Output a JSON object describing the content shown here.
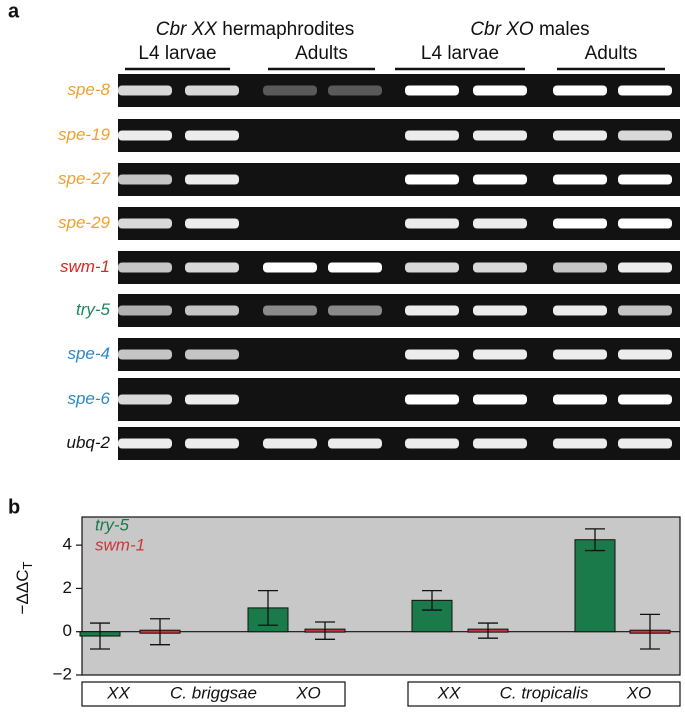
{
  "panel_a": {
    "label": "a",
    "group_headers": [
      {
        "italic": "Cbr XX",
        "text": "hermaphrodites"
      },
      {
        "italic": "Cbr XO",
        "text": "males"
      }
    ],
    "subheaders": [
      "L4 larvae",
      "Adults",
      "L4 larvae",
      "Adults"
    ],
    "genes": [
      {
        "name": "spe-8",
        "color": "#f0a030"
      },
      {
        "name": "spe-19",
        "color": "#f0a030"
      },
      {
        "name": "spe-27",
        "color": "#f0a030"
      },
      {
        "name": "spe-29",
        "color": "#f0a030"
      },
      {
        "name": "swm-1",
        "color": "#e02424"
      },
      {
        "name": "try-5",
        "color": "#1a8a5a"
      },
      {
        "name": "spe-4",
        "color": "#2a88c8"
      },
      {
        "name": "spe-6",
        "color": "#2a88c8"
      },
      {
        "name": "ubq-2",
        "color": "#111111"
      }
    ]
  },
  "chart_data": {
    "type": "bar",
    "label": "b",
    "ylabel": "−ΔΔC",
    "ylabel_sub": "T",
    "categories": [
      "XX",
      "XO",
      "XX",
      "XO"
    ],
    "groups": [
      "C. briggsae",
      "C. tropicalis"
    ],
    "series": [
      {
        "name": "try-5",
        "color": "#1a7a4a",
        "values": [
          -0.2,
          1.1,
          1.45,
          4.25
        ],
        "errors": [
          0.6,
          0.8,
          0.45,
          0.5
        ]
      },
      {
        "name": "swm-1",
        "color": "#c83838",
        "values": [
          0,
          0.05,
          0.05,
          0
        ],
        "errors": [
          0.6,
          0.4,
          0.35,
          0.8
        ]
      }
    ],
    "ylim": [
      -2,
      5.3
    ],
    "yticks": [
      {
        "value": -2,
        "label": "−2"
      },
      0,
      2,
      4
    ],
    "background": "#c8c8c8"
  }
}
